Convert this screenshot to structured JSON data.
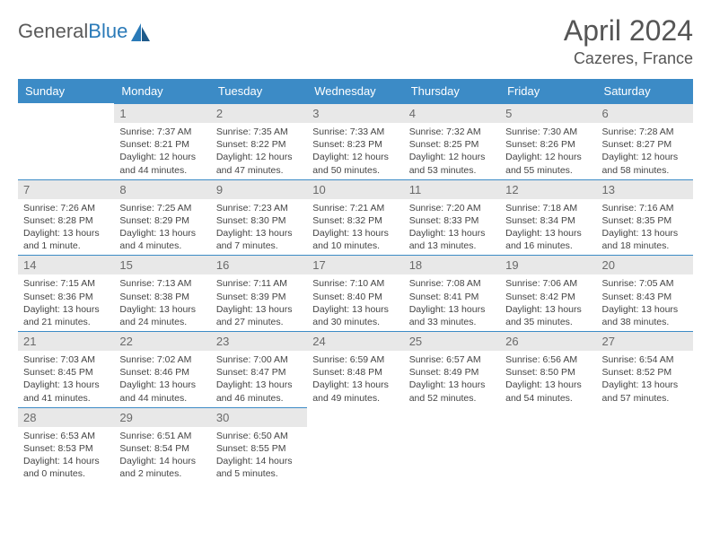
{
  "logo": {
    "part1": "General",
    "part2": "Blue"
  },
  "title": "April 2024",
  "location": "Cazeres, France",
  "colors": {
    "header_bg": "#3c8bc6",
    "header_text": "#ffffff",
    "daynum_bg": "#e8e8e8",
    "daynum_text": "#6a6a6a",
    "border": "#3c8bc6",
    "logo_gray": "#5a5a5a",
    "logo_blue": "#2a7ab8"
  },
  "weekdays": [
    "Sunday",
    "Monday",
    "Tuesday",
    "Wednesday",
    "Thursday",
    "Friday",
    "Saturday"
  ],
  "weeks": [
    [
      null,
      {
        "n": "1",
        "sunrise": "7:37 AM",
        "sunset": "8:21 PM",
        "daylight": "12 hours and 44 minutes."
      },
      {
        "n": "2",
        "sunrise": "7:35 AM",
        "sunset": "8:22 PM",
        "daylight": "12 hours and 47 minutes."
      },
      {
        "n": "3",
        "sunrise": "7:33 AM",
        "sunset": "8:23 PM",
        "daylight": "12 hours and 50 minutes."
      },
      {
        "n": "4",
        "sunrise": "7:32 AM",
        "sunset": "8:25 PM",
        "daylight": "12 hours and 53 minutes."
      },
      {
        "n": "5",
        "sunrise": "7:30 AM",
        "sunset": "8:26 PM",
        "daylight": "12 hours and 55 minutes."
      },
      {
        "n": "6",
        "sunrise": "7:28 AM",
        "sunset": "8:27 PM",
        "daylight": "12 hours and 58 minutes."
      }
    ],
    [
      {
        "n": "7",
        "sunrise": "7:26 AM",
        "sunset": "8:28 PM",
        "daylight": "13 hours and 1 minute."
      },
      {
        "n": "8",
        "sunrise": "7:25 AM",
        "sunset": "8:29 PM",
        "daylight": "13 hours and 4 minutes."
      },
      {
        "n": "9",
        "sunrise": "7:23 AM",
        "sunset": "8:30 PM",
        "daylight": "13 hours and 7 minutes."
      },
      {
        "n": "10",
        "sunrise": "7:21 AM",
        "sunset": "8:32 PM",
        "daylight": "13 hours and 10 minutes."
      },
      {
        "n": "11",
        "sunrise": "7:20 AM",
        "sunset": "8:33 PM",
        "daylight": "13 hours and 13 minutes."
      },
      {
        "n": "12",
        "sunrise": "7:18 AM",
        "sunset": "8:34 PM",
        "daylight": "13 hours and 16 minutes."
      },
      {
        "n": "13",
        "sunrise": "7:16 AM",
        "sunset": "8:35 PM",
        "daylight": "13 hours and 18 minutes."
      }
    ],
    [
      {
        "n": "14",
        "sunrise": "7:15 AM",
        "sunset": "8:36 PM",
        "daylight": "13 hours and 21 minutes."
      },
      {
        "n": "15",
        "sunrise": "7:13 AM",
        "sunset": "8:38 PM",
        "daylight": "13 hours and 24 minutes."
      },
      {
        "n": "16",
        "sunrise": "7:11 AM",
        "sunset": "8:39 PM",
        "daylight": "13 hours and 27 minutes."
      },
      {
        "n": "17",
        "sunrise": "7:10 AM",
        "sunset": "8:40 PM",
        "daylight": "13 hours and 30 minutes."
      },
      {
        "n": "18",
        "sunrise": "7:08 AM",
        "sunset": "8:41 PM",
        "daylight": "13 hours and 33 minutes."
      },
      {
        "n": "19",
        "sunrise": "7:06 AM",
        "sunset": "8:42 PM",
        "daylight": "13 hours and 35 minutes."
      },
      {
        "n": "20",
        "sunrise": "7:05 AM",
        "sunset": "8:43 PM",
        "daylight": "13 hours and 38 minutes."
      }
    ],
    [
      {
        "n": "21",
        "sunrise": "7:03 AM",
        "sunset": "8:45 PM",
        "daylight": "13 hours and 41 minutes."
      },
      {
        "n": "22",
        "sunrise": "7:02 AM",
        "sunset": "8:46 PM",
        "daylight": "13 hours and 44 minutes."
      },
      {
        "n": "23",
        "sunrise": "7:00 AM",
        "sunset": "8:47 PM",
        "daylight": "13 hours and 46 minutes."
      },
      {
        "n": "24",
        "sunrise": "6:59 AM",
        "sunset": "8:48 PM",
        "daylight": "13 hours and 49 minutes."
      },
      {
        "n": "25",
        "sunrise": "6:57 AM",
        "sunset": "8:49 PM",
        "daylight": "13 hours and 52 minutes."
      },
      {
        "n": "26",
        "sunrise": "6:56 AM",
        "sunset": "8:50 PM",
        "daylight": "13 hours and 54 minutes."
      },
      {
        "n": "27",
        "sunrise": "6:54 AM",
        "sunset": "8:52 PM",
        "daylight": "13 hours and 57 minutes."
      }
    ],
    [
      {
        "n": "28",
        "sunrise": "6:53 AM",
        "sunset": "8:53 PM",
        "daylight": "14 hours and 0 minutes."
      },
      {
        "n": "29",
        "sunrise": "6:51 AM",
        "sunset": "8:54 PM",
        "daylight": "14 hours and 2 minutes."
      },
      {
        "n": "30",
        "sunrise": "6:50 AM",
        "sunset": "8:55 PM",
        "daylight": "14 hours and 5 minutes."
      },
      null,
      null,
      null,
      null
    ]
  ]
}
